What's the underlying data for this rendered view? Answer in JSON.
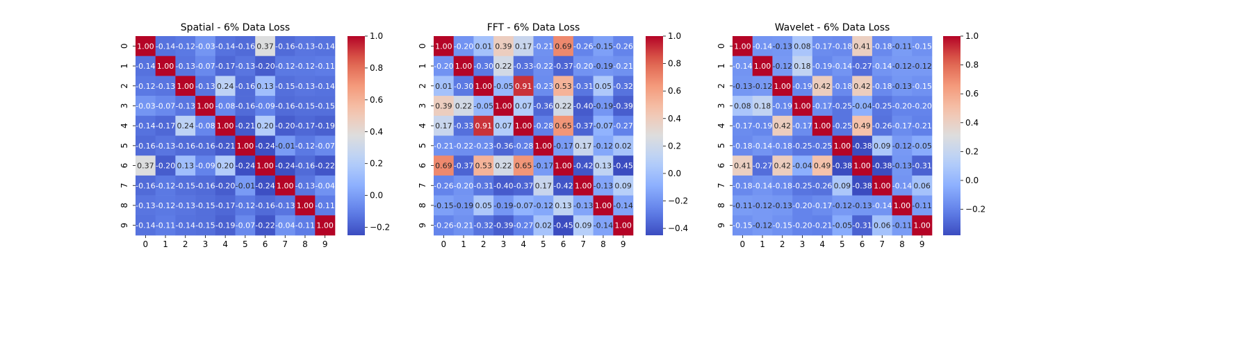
{
  "chart_data": [
    {
      "type": "heatmap",
      "title": "Spatial - 6% Data Loss",
      "x_labels": [
        "0",
        "1",
        "2",
        "3",
        "4",
        "5",
        "6",
        "7",
        "8",
        "9"
      ],
      "y_labels": [
        "0",
        "1",
        "2",
        "3",
        "4",
        "5",
        "6",
        "7",
        "8",
        "9"
      ],
      "vmin": -0.25,
      "vmax": 1.0,
      "colorbar_ticks": [
        -0.2,
        0.0,
        0.2,
        0.4,
        0.6,
        0.8,
        1.0
      ],
      "colorbar_tick_labels": [
        "−0.2",
        "0.0",
        "0.2",
        "0.4",
        "0.6",
        "0.8",
        "1.0"
      ],
      "values": [
        [
          1.0,
          -0.14,
          -0.12,
          -0.03,
          -0.14,
          -0.16,
          0.37,
          -0.16,
          -0.13,
          -0.14
        ],
        [
          -0.14,
          1.0,
          -0.13,
          -0.07,
          -0.17,
          -0.13,
          -0.2,
          -0.12,
          -0.12,
          -0.11
        ],
        [
          -0.12,
          -0.13,
          1.0,
          -0.13,
          0.24,
          -0.16,
          0.13,
          -0.15,
          -0.13,
          -0.14
        ],
        [
          -0.03,
          -0.07,
          -0.13,
          1.0,
          -0.08,
          -0.16,
          -0.09,
          -0.16,
          -0.15,
          -0.15
        ],
        [
          -0.14,
          -0.17,
          0.24,
          -0.08,
          1.0,
          -0.21,
          0.2,
          -0.2,
          -0.17,
          -0.19
        ],
        [
          -0.16,
          -0.13,
          -0.16,
          -0.16,
          -0.21,
          1.0,
          -0.24,
          -0.01,
          -0.12,
          -0.07
        ],
        [
          0.37,
          -0.2,
          0.13,
          -0.09,
          0.2,
          -0.24,
          1.0,
          -0.24,
          -0.16,
          -0.22
        ],
        [
          -0.16,
          -0.12,
          -0.15,
          -0.16,
          -0.2,
          -0.01,
          -0.24,
          1.0,
          -0.13,
          -0.04
        ],
        [
          -0.13,
          -0.12,
          -0.13,
          -0.15,
          -0.17,
          -0.12,
          -0.16,
          -0.13,
          1.0,
          -0.11
        ],
        [
          -0.14,
          -0.11,
          -0.14,
          -0.15,
          -0.19,
          -0.07,
          -0.22,
          -0.04,
          -0.11,
          1.0
        ]
      ]
    },
    {
      "type": "heatmap",
      "title": "FFT - 6% Data Loss",
      "x_labels": [
        "0",
        "1",
        "2",
        "3",
        "4",
        "5",
        "6",
        "7",
        "8",
        "9"
      ],
      "y_labels": [
        "0",
        "1",
        "2",
        "3",
        "4",
        "5",
        "6",
        "7",
        "8",
        "9"
      ],
      "vmin": -0.45,
      "vmax": 1.0,
      "colorbar_ticks": [
        -0.4,
        -0.2,
        0.0,
        0.2,
        0.4,
        0.6,
        0.8,
        1.0
      ],
      "colorbar_tick_labels": [
        "−0.4",
        "−0.2",
        "0.0",
        "0.2",
        "0.4",
        "0.6",
        "0.8",
        "1.0"
      ],
      "values": [
        [
          1.0,
          -0.2,
          0.01,
          0.39,
          0.17,
          -0.21,
          0.69,
          -0.26,
          -0.15,
          -0.26
        ],
        [
          -0.2,
          1.0,
          -0.3,
          0.22,
          -0.33,
          -0.22,
          -0.37,
          -0.2,
          -0.19,
          -0.21
        ],
        [
          0.01,
          -0.3,
          1.0,
          -0.05,
          0.91,
          -0.23,
          0.53,
          -0.31,
          0.05,
          -0.32
        ],
        [
          0.39,
          0.22,
          -0.05,
          1.0,
          0.07,
          -0.36,
          0.22,
          -0.4,
          -0.19,
          -0.39
        ],
        [
          0.17,
          -0.33,
          0.91,
          0.07,
          1.0,
          -0.28,
          0.65,
          -0.37,
          -0.07,
          -0.27
        ],
        [
          -0.21,
          -0.22,
          -0.23,
          -0.36,
          -0.28,
          1.0,
          -0.17,
          0.17,
          -0.12,
          0.02
        ],
        [
          0.69,
          -0.37,
          0.53,
          0.22,
          0.65,
          -0.17,
          1.0,
          -0.42,
          0.13,
          -0.45
        ],
        [
          -0.26,
          -0.2,
          -0.31,
          -0.4,
          -0.37,
          0.17,
          -0.42,
          1.0,
          -0.13,
          0.09
        ],
        [
          -0.15,
          -0.19,
          0.05,
          -0.19,
          -0.07,
          -0.12,
          0.13,
          -0.13,
          1.0,
          -0.14
        ],
        [
          -0.26,
          -0.21,
          -0.32,
          -0.39,
          -0.27,
          0.02,
          -0.45,
          0.09,
          -0.14,
          1.0
        ]
      ]
    },
    {
      "type": "heatmap",
      "title": "Wavelet - 6% Data Loss",
      "x_labels": [
        "0",
        "1",
        "2",
        "3",
        "4",
        "5",
        "6",
        "7",
        "8",
        "9"
      ],
      "y_labels": [
        "0",
        "1",
        "2",
        "3",
        "4",
        "5",
        "6",
        "7",
        "8",
        "9"
      ],
      "vmin": -0.38,
      "vmax": 1.0,
      "colorbar_ticks": [
        -0.2,
        0.0,
        0.2,
        0.4,
        0.6,
        0.8,
        1.0
      ],
      "colorbar_tick_labels": [
        "−0.2",
        "0.0",
        "0.2",
        "0.4",
        "0.6",
        "0.8",
        "1.0"
      ],
      "values": [
        [
          1.0,
          -0.14,
          -0.13,
          0.08,
          -0.17,
          -0.18,
          0.41,
          -0.18,
          -0.11,
          -0.15
        ],
        [
          -0.14,
          1.0,
          -0.12,
          0.18,
          -0.19,
          -0.14,
          -0.27,
          -0.14,
          -0.12,
          -0.12
        ],
        [
          -0.13,
          -0.12,
          1.0,
          -0.19,
          0.42,
          -0.18,
          0.42,
          -0.18,
          -0.13,
          -0.15
        ],
        [
          0.08,
          0.18,
          -0.19,
          1.0,
          -0.17,
          -0.25,
          -0.04,
          -0.25,
          -0.2,
          -0.2
        ],
        [
          -0.17,
          -0.19,
          0.42,
          -0.17,
          1.0,
          -0.25,
          0.49,
          -0.26,
          -0.17,
          -0.21
        ],
        [
          -0.18,
          -0.14,
          -0.18,
          -0.25,
          -0.25,
          1.0,
          -0.38,
          0.09,
          -0.12,
          -0.05
        ],
        [
          0.41,
          -0.27,
          0.42,
          -0.04,
          0.49,
          -0.38,
          1.0,
          -0.38,
          -0.13,
          -0.31
        ],
        [
          -0.18,
          -0.14,
          -0.18,
          -0.25,
          -0.26,
          0.09,
          -0.38,
          1.0,
          -0.14,
          0.06
        ],
        [
          -0.11,
          -0.12,
          -0.13,
          -0.2,
          -0.17,
          -0.12,
          -0.13,
          -0.14,
          1.0,
          -0.11
        ],
        [
          -0.15,
          -0.12,
          -0.15,
          -0.2,
          -0.21,
          -0.05,
          -0.31,
          0.06,
          -0.11,
          1.0
        ]
      ]
    }
  ]
}
